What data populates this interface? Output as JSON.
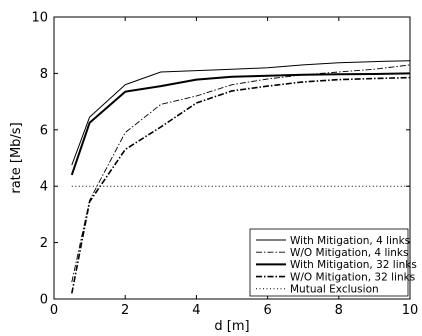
{
  "chart_data": {
    "type": "line",
    "title": "",
    "xlabel": "d [m]",
    "ylabel": "rate [Mb/s]",
    "xlim": [
      0,
      10
    ],
    "ylim": [
      0,
      10
    ],
    "xticks": [
      "0",
      "2",
      "4",
      "6",
      "8",
      "10"
    ],
    "yticks": [
      "0",
      "2",
      "4",
      "6",
      "8",
      "10"
    ],
    "grid": false,
    "legend_position": "bottom-right",
    "series": [
      {
        "name": "With Mitigation, 4 links",
        "style": "solid-thin",
        "x": [
          0.5,
          1,
          2,
          3,
          4,
          5,
          6,
          7,
          8,
          9,
          10
        ],
        "y": [
          4.75,
          6.45,
          7.6,
          8.05,
          8.1,
          8.15,
          8.2,
          8.3,
          8.38,
          8.42,
          8.45
        ]
      },
      {
        "name": "W/O Mitigation, 4 links",
        "style": "dashdot-thin",
        "x": [
          0.5,
          1,
          2,
          3,
          4,
          5,
          6,
          7,
          8,
          9,
          10
        ],
        "y": [
          0.6,
          3.5,
          5.9,
          6.9,
          7.2,
          7.6,
          7.8,
          7.95,
          8.05,
          8.15,
          8.3
        ]
      },
      {
        "name": "With Mitigation, 32 links",
        "style": "solid-thick",
        "x": [
          0.5,
          1,
          2,
          3,
          4,
          5,
          6,
          7,
          8,
          9,
          10
        ],
        "y": [
          4.4,
          6.25,
          7.35,
          7.55,
          7.78,
          7.88,
          7.92,
          7.95,
          7.97,
          7.98,
          8.0
        ]
      },
      {
        "name": "W/O Mitigation, 32 links",
        "style": "dashdot-thick",
        "x": [
          0.5,
          1,
          2,
          3,
          4,
          5,
          6,
          7,
          8,
          9,
          10
        ],
        "y": [
          0.2,
          3.45,
          5.3,
          6.1,
          6.95,
          7.38,
          7.55,
          7.7,
          7.78,
          7.82,
          7.85
        ]
      },
      {
        "name": "Mutual Exclusion",
        "style": "dotted",
        "x": [
          0.5,
          10
        ],
        "y": [
          4,
          4
        ]
      }
    ]
  }
}
